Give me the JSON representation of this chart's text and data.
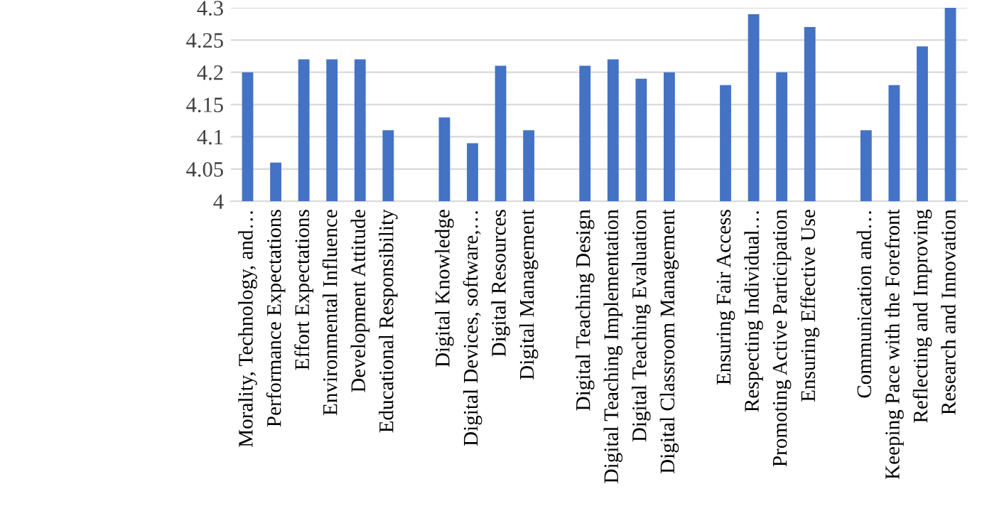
{
  "chart_data": {
    "type": "bar",
    "categories": [
      "Morality, Technology, and…",
      "Performance Expectations",
      "Effort Expectations",
      "Environmental Influence",
      "Development Attitude",
      "Educational Responsibility",
      null,
      "Digital Knowledge",
      "Digital Devices, software,…",
      "Digital Resources",
      "Digital Management",
      null,
      "Digital Teaching Design",
      "Digital Teaching Implementation",
      "Digital Teaching Evaluation",
      "Digital Classroom Management",
      null,
      "Ensuring Fair Access",
      "Respecting Individual…",
      "Promoting Active Participation",
      "Ensuring Effective Use",
      null,
      "Communication and…",
      "Keeping Pace with the Forefront",
      "Reflecting and Improving",
      "Research and Innovation"
    ],
    "values": [
      4.2,
      4.06,
      4.22,
      4.22,
      4.22,
      4.11,
      null,
      4.13,
      4.09,
      4.21,
      4.11,
      null,
      4.21,
      4.22,
      4.19,
      4.2,
      null,
      4.18,
      4.29,
      4.2,
      4.27,
      null,
      4.11,
      4.18,
      4.24,
      4.3
    ],
    "color": "#4472c4",
    "ylim": [
      4,
      4.3
    ],
    "yticks": [
      4,
      4.05,
      4.1,
      4.15,
      4.2,
      4.25,
      4.3
    ],
    "grid": "y"
  }
}
